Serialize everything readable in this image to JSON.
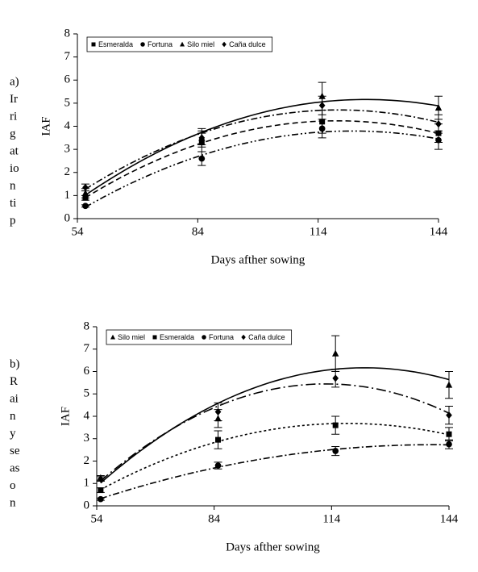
{
  "chart_data": [
    {
      "type": "line",
      "side_label": [
        "a)",
        "Ir",
        "ri",
        "g",
        "at",
        "io",
        "n",
        "ti",
        "p"
      ],
      "x_label": "Days afther sowing",
      "y_label": "IAF",
      "x": [
        56,
        85,
        115,
        144
      ],
      "xlim": [
        54,
        144
      ],
      "xticks": [
        54,
        84,
        114,
        144
      ],
      "ylim": [
        0,
        8
      ],
      "yticks": [
        0,
        1,
        2,
        3,
        4,
        5,
        6,
        7,
        8
      ],
      "legend": "top-left",
      "trend": "quadratic",
      "series": [
        {
          "name": "Esmeralda",
          "marker": "square",
          "line": "dashed",
          "color": "#000000",
          "values": [
            0.9,
            3.3,
            4.2,
            3.7
          ],
          "errors": [
            0.1,
            0.4,
            0.5,
            0.4
          ]
        },
        {
          "name": "Fortuna",
          "marker": "circle",
          "line": "dashdotdot",
          "color": "#000000",
          "values": [
            0.55,
            2.6,
            3.9,
            3.4
          ],
          "errors": [
            0.05,
            0.3,
            0.4,
            0.4
          ]
        },
        {
          "name": "Silo miel",
          "marker": "triangle",
          "line": "solid",
          "color": "#000000",
          "values": [
            1.1,
            3.5,
            5.3,
            4.8
          ],
          "errors": [
            0.2,
            0.4,
            0.6,
            0.5
          ]
        },
        {
          "name": "Caña dulce",
          "marker": "diamond",
          "line": "dashdot",
          "color": "#000000",
          "values": [
            1.35,
            3.5,
            4.9,
            4.1
          ],
          "errors": [
            0.15,
            0.3,
            0.4,
            0.4
          ]
        }
      ]
    },
    {
      "type": "line",
      "side_label": [
        "b)",
        "R",
        "ai",
        "n",
        "y",
        "se",
        "as",
        "o",
        "n"
      ],
      "x_label": "Days afther sowing",
      "y_label": "IAF",
      "x": [
        55,
        85,
        115,
        144
      ],
      "xlim": [
        54,
        144
      ],
      "xticks": [
        54,
        84,
        114,
        144
      ],
      "ylim": [
        0,
        8
      ],
      "yticks": [
        0,
        1,
        2,
        3,
        4,
        5,
        6,
        7,
        8
      ],
      "legend": "top-left",
      "trend": "quadratic",
      "series": [
        {
          "name": "Silo miel",
          "marker": "triangle",
          "line": "solid",
          "color": "#000000",
          "values": [
            1.25,
            3.9,
            6.8,
            5.4
          ],
          "errors": [
            0.1,
            0.4,
            0.8,
            0.6
          ]
        },
        {
          "name": "Esmeralda",
          "marker": "square",
          "line": "dotted",
          "color": "#000000",
          "values": [
            0.7,
            2.95,
            3.6,
            3.2
          ],
          "errors": [
            0.1,
            0.4,
            0.4,
            0.3
          ]
        },
        {
          "name": "Fortuna",
          "marker": "circle",
          "line": "dashdot",
          "color": "#000000",
          "values": [
            0.3,
            1.8,
            2.45,
            2.75
          ],
          "errors": [
            0.05,
            0.15,
            0.2,
            0.2
          ]
        },
        {
          "name": "Caña dulce",
          "marker": "diamond",
          "line": "longdashdot",
          "color": "#000000",
          "values": [
            1.2,
            4.2,
            5.7,
            4.05
          ],
          "errors": [
            0.1,
            0.4,
            0.4,
            0.4
          ]
        }
      ]
    }
  ]
}
